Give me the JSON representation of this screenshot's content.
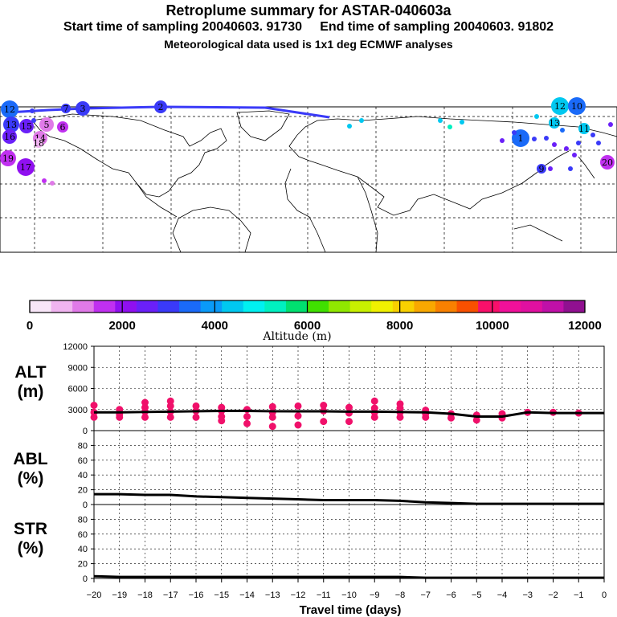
{
  "header": {
    "title": "Retroplume summary for ASTAR-040603a",
    "start_label": "Start time of sampling 20040603. 91730",
    "end_label": "End time of sampling 20040603. 91802",
    "met_label": "Meteorological data used is 1x1 deg ECMWF analyses"
  },
  "colorbar": {
    "title": "Altitude (m)",
    "ticks": [
      "0",
      "2000",
      "4000",
      "6000",
      "8000",
      "10000",
      "12000"
    ],
    "colors": [
      "#f8e6f8",
      "#f0b4f0",
      "#e07ae8",
      "#c030f0",
      "#9010f0",
      "#6a20f8",
      "#3a3af8",
      "#1a6af8",
      "#0a9af8",
      "#00c8f0",
      "#00f0f0",
      "#00f0c0",
      "#00e070",
      "#40e000",
      "#90e800",
      "#c8f000",
      "#f0f000",
      "#f8d000",
      "#f8a800",
      "#f88000",
      "#f85000",
      "#f8106a",
      "#f0109a",
      "#e010a0",
      "#c010a8",
      "#901090"
    ]
  },
  "map": {
    "labels": [
      "12",
      "13",
      "15",
      "16",
      "5",
      "6",
      "17",
      "14",
      "19",
      "18",
      "7",
      "3",
      "2",
      "1",
      "12",
      "10",
      "11",
      "20",
      "13",
      "9"
    ]
  },
  "chart_data": [
    {
      "type": "line",
      "name": "ALT",
      "ylabel": "ALT\n(m)",
      "ylim": [
        0,
        12000
      ],
      "yticks": [
        0,
        3000,
        6000,
        9000,
        12000
      ],
      "x": [
        -20,
        -19,
        -18,
        -17,
        -16,
        -15,
        -14,
        -13,
        -12,
        -11,
        -10,
        -9,
        -8,
        -7,
        -6,
        -5,
        -4,
        -3,
        -2,
        -1,
        0
      ],
      "values": [
        2600,
        2600,
        2650,
        2700,
        2750,
        2800,
        2800,
        2750,
        2750,
        2750,
        2700,
        2700,
        2650,
        2600,
        2400,
        2000,
        2000,
        2600,
        2500,
        2500,
        2500
      ],
      "points": [
        [
          -20,
          1900
        ],
        [
          -20,
          3600
        ],
        [
          -20,
          2600
        ],
        [
          -19,
          1900
        ],
        [
          -19,
          3000
        ],
        [
          -19,
          2300
        ],
        [
          -18,
          1900
        ],
        [
          -18,
          3300
        ],
        [
          -18,
          2700
        ],
        [
          -18,
          4000
        ],
        [
          -17,
          1900
        ],
        [
          -17,
          3500
        ],
        [
          -17,
          2700
        ],
        [
          -17,
          4200
        ],
        [
          -16,
          1900
        ],
        [
          -16,
          3500
        ],
        [
          -16,
          2800
        ],
        [
          -15,
          2000
        ],
        [
          -15,
          3300
        ],
        [
          -15,
          2800
        ],
        [
          -15,
          1400
        ],
        [
          -14,
          2000
        ],
        [
          -14,
          3000
        ],
        [
          -14,
          1000
        ],
        [
          -13,
          1900
        ],
        [
          -13,
          3400
        ],
        [
          -13,
          2600
        ],
        [
          -13,
          600
        ],
        [
          -12,
          2100
        ],
        [
          -12,
          3500
        ],
        [
          -12,
          800
        ],
        [
          -11,
          1300
        ],
        [
          -11,
          3600
        ],
        [
          -11,
          2800
        ],
        [
          -10,
          1300
        ],
        [
          -10,
          3300
        ],
        [
          -10,
          2500
        ],
        [
          -9,
          1900
        ],
        [
          -9,
          3200
        ],
        [
          -9,
          2600
        ],
        [
          -9,
          4200
        ],
        [
          -8,
          1900
        ],
        [
          -8,
          3200
        ],
        [
          -8,
          2600
        ],
        [
          -8,
          3800
        ],
        [
          -7,
          1900
        ],
        [
          -7,
          2900
        ],
        [
          -7,
          2400
        ],
        [
          -6,
          1800
        ],
        [
          -6,
          2400
        ],
        [
          -5,
          1500
        ],
        [
          -5,
          2200
        ],
        [
          -4,
          1800
        ],
        [
          -4,
          2400
        ],
        [
          -3,
          2600
        ],
        [
          -2,
          2600
        ],
        [
          -1,
          2500
        ]
      ]
    },
    {
      "type": "line",
      "name": "ABL",
      "ylabel": "ABL\n(%)",
      "ylim": [
        0,
        100
      ],
      "yticks": [
        0,
        20,
        40,
        60,
        80
      ],
      "x": [
        -20,
        -19,
        -18,
        -17,
        -16,
        -15,
        -14,
        -13,
        -12,
        -11,
        -10,
        -9,
        -8,
        -7,
        -6,
        -5,
        -4,
        -3,
        -2,
        -1,
        0
      ],
      "values": [
        14,
        14,
        13,
        13,
        11,
        10,
        9,
        8,
        7,
        6,
        6,
        6,
        5,
        3,
        2,
        1,
        1,
        1,
        1,
        1,
        1
      ]
    },
    {
      "type": "line",
      "name": "STR",
      "ylabel": "STR\n(%)",
      "ylim": [
        0,
        100
      ],
      "yticks": [
        0,
        20,
        40,
        60,
        80
      ],
      "x": [
        -20,
        -19,
        -18,
        -17,
        -16,
        -15,
        -14,
        -13,
        -12,
        -11,
        -10,
        -9,
        -8,
        -7,
        -6,
        -5,
        -4,
        -3,
        -2,
        -1,
        0
      ],
      "values": [
        3,
        2,
        2,
        2,
        2,
        2,
        2,
        2,
        2,
        2,
        2,
        2,
        2,
        1,
        1,
        1,
        1,
        1,
        1,
        1,
        1
      ]
    }
  ],
  "xaxis": {
    "label": "Travel time (days)",
    "ticks": [
      "−20",
      "−19",
      "−18",
      "−17",
      "−16",
      "−15",
      "−14",
      "−13",
      "−12",
      "−11",
      "−10",
      "−9",
      "−8",
      "−7",
      "−6",
      "−5",
      "−4",
      "−3",
      "−2",
      "−1",
      "0"
    ]
  }
}
